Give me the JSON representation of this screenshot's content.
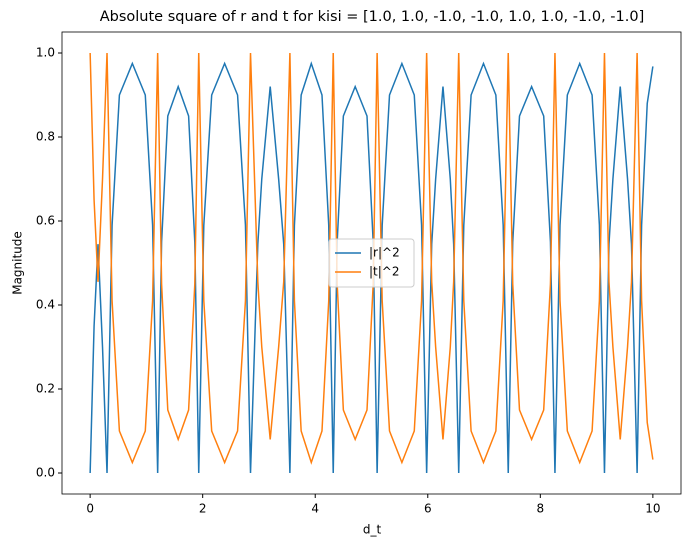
{
  "chart_data": {
    "type": "line",
    "title": "Absolute square of r and t for kisi = [1.0, 1.0, -1.0, -1.0, 1.0, 1.0, -1.0, -1.0]",
    "x_label": "d_t",
    "y_label": "Magnitude",
    "x": [
      0,
      0.07,
      0.14,
      0.22,
      0.3,
      0.39,
      0.52,
      0.75,
      0.98,
      1.11,
      1.2,
      1.27,
      1.38,
      1.565,
      1.75,
      1.86,
      1.93,
      2.02,
      2.16,
      2.39,
      2.62,
      2.76,
      2.85,
      2.98,
      3.05,
      3.2,
      3.35,
      3.44,
      3.55,
      3.63,
      3.75,
      3.93,
      4.12,
      4.24,
      4.32,
      4.39,
      4.5,
      4.71,
      4.92,
      5.03,
      5.1,
      5.19,
      5.32,
      5.54,
      5.76,
      5.89,
      5.98,
      6.07,
      6.14,
      6.27,
      6.4,
      6.46,
      6.55,
      6.64,
      6.77,
      6.99,
      7.21,
      7.34,
      7.43,
      7.51,
      7.63,
      7.845,
      8.06,
      8.18,
      8.26,
      8.35,
      8.48,
      8.7,
      8.92,
      9.05,
      9.14,
      9.22,
      9.29,
      9.42,
      9.55,
      9.62,
      9.72,
      9.8,
      9.9,
      10
    ],
    "series": [
      {
        "name": "|r|^2",
        "color": "#1f77b4",
        "values": [
          0,
          0.35,
          0.545,
          0.3,
          0,
          0.59,
          0.9,
          0.975,
          0.9,
          0.59,
          0,
          0.55,
          0.85,
          0.92,
          0.85,
          0.55,
          0,
          0.59,
          0.9,
          0.975,
          0.9,
          0.59,
          0,
          0.545,
          0.7,
          0.92,
          0.7,
          0.545,
          0,
          0.59,
          0.9,
          0.975,
          0.9,
          0.59,
          0,
          0.55,
          0.85,
          0.92,
          0.85,
          0.55,
          0,
          0.59,
          0.9,
          0.975,
          0.9,
          0.59,
          0,
          0.545,
          0.7,
          0.92,
          0.7,
          0.545,
          0,
          0.59,
          0.9,
          0.975,
          0.9,
          0.59,
          0,
          0.55,
          0.85,
          0.92,
          0.85,
          0.55,
          0,
          0.59,
          0.9,
          0.975,
          0.9,
          0.59,
          0,
          0.545,
          0.7,
          0.92,
          0.7,
          0.545,
          0,
          0.59,
          0.88,
          0.968
        ]
      },
      {
        "name": "|t|^2",
        "color": "#ff7f0e",
        "values": [
          1,
          0.65,
          0.455,
          0.7,
          1,
          0.41,
          0.1,
          0.025,
          0.1,
          0.41,
          1,
          0.45,
          0.15,
          0.08,
          0.15,
          0.45,
          1,
          0.41,
          0.1,
          0.025,
          0.1,
          0.41,
          1,
          0.455,
          0.3,
          0.08,
          0.3,
          0.455,
          1,
          0.41,
          0.1,
          0.025,
          0.1,
          0.41,
          1,
          0.45,
          0.15,
          0.08,
          0.15,
          0.45,
          1,
          0.41,
          0.1,
          0.025,
          0.1,
          0.41,
          1,
          0.455,
          0.3,
          0.08,
          0.3,
          0.455,
          1,
          0.41,
          0.1,
          0.025,
          0.1,
          0.41,
          1,
          0.45,
          0.15,
          0.08,
          0.15,
          0.45,
          1,
          0.41,
          0.1,
          0.025,
          0.1,
          0.41,
          1,
          0.455,
          0.3,
          0.08,
          0.3,
          0.455,
          1,
          0.41,
          0.12,
          0.032
        ]
      }
    ],
    "xlim": [
      -0.5,
      10.5
    ],
    "xticks": [
      0,
      2,
      4,
      6,
      8,
      10
    ],
    "ylim": [
      -0.05,
      1.05
    ],
    "yticks": [
      {
        "value": 0,
        "label": "0.0"
      },
      {
        "value": 0.2,
        "label": "0.2"
      },
      {
        "value": 0.4,
        "label": "0.4"
      },
      {
        "value": 0.6,
        "label": "0.6"
      },
      {
        "value": 0.8,
        "label": "0.8"
      },
      {
        "value": 1,
        "label": "1.0"
      }
    ],
    "legend": "center",
    "grid": false
  }
}
